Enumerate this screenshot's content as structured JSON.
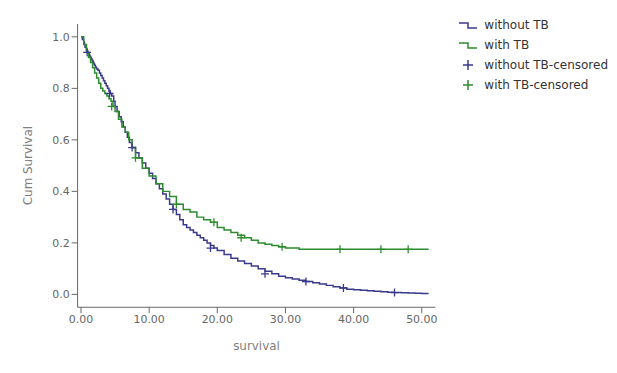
{
  "chart_data": {
    "type": "step",
    "xlabel": "survival",
    "ylabel": "Cum Survival",
    "xlim": [
      -0.5,
      52
    ],
    "ylim": [
      -0.05,
      1.05
    ],
    "xticks": [
      {
        "value": 0.0,
        "label": "0.00"
      },
      {
        "value": 10.0,
        "label": "10.00"
      },
      {
        "value": 20.0,
        "label": "20.00"
      },
      {
        "value": 30.0,
        "label": "30.00"
      },
      {
        "value": 40.0,
        "label": "40.00"
      },
      {
        "value": 50.0,
        "label": "50.00"
      }
    ],
    "yticks": [
      {
        "value": 0.0,
        "label": "0.0"
      },
      0.2,
      0.4,
      0.6,
      0.8,
      {
        "value": 1.0,
        "label": "1.0"
      }
    ],
    "grid": false,
    "legend": "right",
    "series": [
      {
        "name": "without TB",
        "color": "#3a3a8c",
        "type": "line",
        "line_style": "step",
        "x": [
          0,
          0.2,
          0.4,
          0.5,
          0.6,
          0.8,
          0.9,
          1.0,
          1.1,
          1.2,
          1.3,
          1.4,
          1.5,
          1.6,
          1.7,
          1.8,
          1.9,
          2.0,
          2.1,
          2.2,
          2.3,
          2.5,
          2.7,
          2.9,
          3.1,
          3.3,
          3.5,
          3.7,
          3.9,
          4.1,
          4.3,
          4.5,
          4.8,
          5.0,
          5.3,
          5.6,
          5.9,
          6.2,
          6.5,
          6.8,
          7.1,
          7.5,
          8.0,
          8.5,
          9.0,
          9.5,
          10.0,
          10.5,
          11.0,
          11.5,
          12.0,
          12.5,
          13.0,
          13.5,
          14.0,
          14.5,
          15.0,
          15.5,
          16.0,
          16.5,
          17.0,
          17.5,
          18.0,
          18.5,
          19.0,
          19.5,
          20.0,
          21.0,
          22.0,
          23.0,
          24.0,
          25.0,
          26.0,
          27.0,
          28.0,
          29.0,
          30.0,
          31.0,
          32.0,
          33.0,
          34.0,
          35.0,
          36.0,
          37.0,
          38.0,
          39.0,
          40.0,
          41.0,
          42.0,
          43.0,
          44.0,
          45.0,
          46.0,
          47.0,
          48.0,
          49.0,
          50.0,
          51.0
        ],
        "values": [
          1.0,
          0.99,
          0.98,
          0.97,
          0.96,
          0.95,
          0.945,
          0.94,
          0.935,
          0.93,
          0.925,
          0.92,
          0.915,
          0.91,
          0.905,
          0.9,
          0.895,
          0.89,
          0.885,
          0.88,
          0.875,
          0.87,
          0.86,
          0.85,
          0.84,
          0.83,
          0.82,
          0.81,
          0.8,
          0.79,
          0.78,
          0.77,
          0.75,
          0.73,
          0.71,
          0.69,
          0.67,
          0.65,
          0.63,
          0.61,
          0.59,
          0.57,
          0.55,
          0.53,
          0.51,
          0.49,
          0.47,
          0.45,
          0.43,
          0.41,
          0.39,
          0.37,
          0.35,
          0.33,
          0.31,
          0.29,
          0.27,
          0.26,
          0.25,
          0.24,
          0.23,
          0.22,
          0.21,
          0.2,
          0.19,
          0.18,
          0.17,
          0.155,
          0.14,
          0.13,
          0.12,
          0.11,
          0.1,
          0.09,
          0.08,
          0.07,
          0.065,
          0.06,
          0.055,
          0.05,
          0.045,
          0.04,
          0.035,
          0.03,
          0.025,
          0.02,
          0.018,
          0.016,
          0.014,
          0.012,
          0.01,
          0.008,
          0.007,
          0.006,
          0.005,
          0.004,
          0.003,
          0.003
        ]
      },
      {
        "name": "with TB",
        "color": "#2e8b2e",
        "type": "line",
        "line_style": "step",
        "x": [
          0,
          0.4,
          0.8,
          1.1,
          1.4,
          1.7,
          2.0,
          2.3,
          2.6,
          2.9,
          3.2,
          3.5,
          3.8,
          4.1,
          4.4,
          4.7,
          5.0,
          5.5,
          6.0,
          6.5,
          7.0,
          7.5,
          8.0,
          9.0,
          10.0,
          11.0,
          12.0,
          13.0,
          14.0,
          15.0,
          16.0,
          17.0,
          18.0,
          19.0,
          20.0,
          21.0,
          22.0,
          23.0,
          24.0,
          25.0,
          26.0,
          27.0,
          28.0,
          29.0,
          30.0,
          32.0,
          35.0,
          38.0,
          41.0,
          44.0,
          47.0,
          50.0,
          51.0
        ],
        "values": [
          1.0,
          0.97,
          0.94,
          0.92,
          0.9,
          0.88,
          0.86,
          0.84,
          0.82,
          0.8,
          0.79,
          0.78,
          0.77,
          0.76,
          0.75,
          0.73,
          0.71,
          0.68,
          0.65,
          0.63,
          0.6,
          0.57,
          0.53,
          0.49,
          0.46,
          0.43,
          0.4,
          0.38,
          0.35,
          0.33,
          0.32,
          0.3,
          0.29,
          0.28,
          0.26,
          0.25,
          0.24,
          0.23,
          0.22,
          0.21,
          0.2,
          0.195,
          0.19,
          0.185,
          0.18,
          0.175,
          0.175,
          0.175,
          0.175,
          0.175,
          0.175,
          0.175,
          0.175
        ]
      },
      {
        "name": "without TB-censored",
        "color": "#3a3a8c",
        "type": "scatter",
        "marker": "+",
        "x": [
          0.9,
          4.2,
          7.5,
          13.5,
          19.0,
          27.0,
          33.0,
          38.5,
          46.0
        ],
        "values": [
          0.94,
          0.78,
          0.57,
          0.33,
          0.18,
          0.08,
          0.05,
          0.025,
          0.007
        ]
      },
      {
        "name": "with TB-censored",
        "color": "#2e8b2e",
        "type": "scatter",
        "marker": "+",
        "x": [
          4.5,
          8.0,
          14.0,
          19.5,
          23.5,
          29.5,
          38.0,
          44.0,
          48.0
        ],
        "values": [
          0.73,
          0.53,
          0.35,
          0.28,
          0.22,
          0.185,
          0.175,
          0.175,
          0.175
        ]
      }
    ]
  }
}
